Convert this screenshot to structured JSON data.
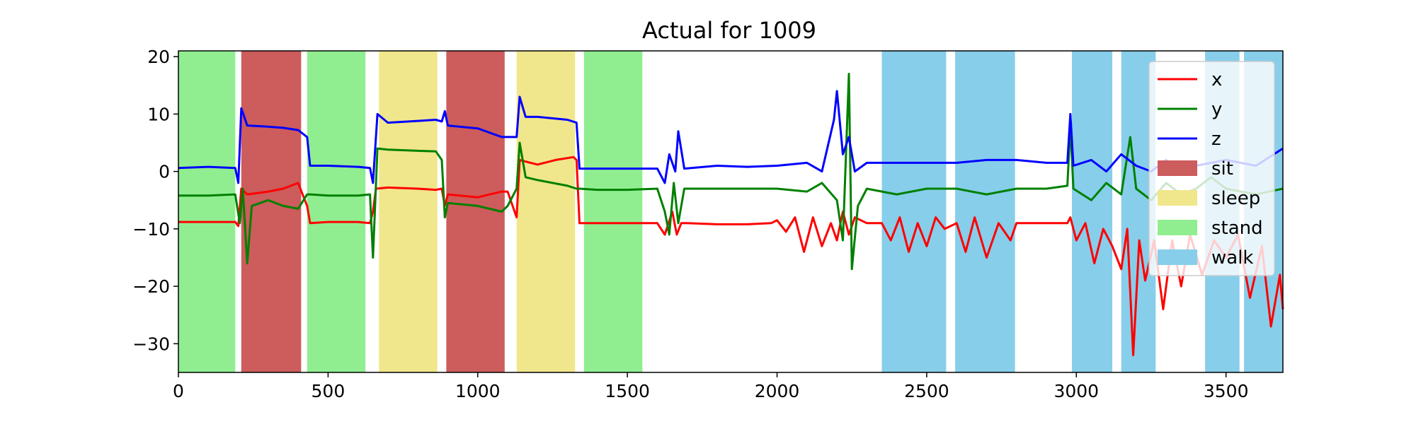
{
  "chart_data": {
    "type": "line",
    "title": "Actual for 1009",
    "xlabel": "",
    "ylabel": "",
    "xlim": [
      0,
      3690
    ],
    "ylim": [
      -35,
      21
    ],
    "x_ticks": [
      0,
      500,
      1000,
      1500,
      2000,
      2500,
      3000,
      3500
    ],
    "y_ticks": [
      20,
      10,
      0,
      -10,
      -20,
      -30
    ],
    "x_tick_labels": [
      "0",
      "500",
      "1000",
      "1500",
      "2000",
      "2500",
      "3000",
      "3500"
    ],
    "y_tick_labels": [
      "20",
      "10",
      "0",
      "−10",
      "−20",
      "−30"
    ],
    "grid": false,
    "legend_position": "upper-right",
    "series": [
      {
        "name": "x",
        "color": "#ff0000",
        "points": [
          [
            0,
            -8.8
          ],
          [
            100,
            -8.8
          ],
          [
            190,
            -8.8
          ],
          [
            200,
            -9.5
          ],
          [
            210,
            -3
          ],
          [
            230,
            -4
          ],
          [
            300,
            -3.5
          ],
          [
            350,
            -3
          ],
          [
            400,
            -2
          ],
          [
            430,
            -6
          ],
          [
            440,
            -9
          ],
          [
            500,
            -8.8
          ],
          [
            600,
            -8.8
          ],
          [
            640,
            -9
          ],
          [
            650,
            -7
          ],
          [
            660,
            -3
          ],
          [
            700,
            -2.8
          ],
          [
            800,
            -3
          ],
          [
            860,
            -3.2
          ],
          [
            880,
            -3
          ],
          [
            890,
            -6
          ],
          [
            900,
            -4
          ],
          [
            1000,
            -4.5
          ],
          [
            1080,
            -3.5
          ],
          [
            1100,
            -3.5
          ],
          [
            1130,
            -8
          ],
          [
            1140,
            2
          ],
          [
            1200,
            1.2
          ],
          [
            1260,
            2
          ],
          [
            1320,
            2.5
          ],
          [
            1330,
            2
          ],
          [
            1340,
            -9
          ],
          [
            1400,
            -9
          ],
          [
            1500,
            -9
          ],
          [
            1550,
            -9
          ],
          [
            1600,
            -9
          ],
          [
            1625,
            -11
          ],
          [
            1650,
            -7
          ],
          [
            1665,
            -11
          ],
          [
            1680,
            -9
          ],
          [
            1700,
            -9
          ],
          [
            1800,
            -9.2
          ],
          [
            1900,
            -9.2
          ],
          [
            1980,
            -9
          ],
          [
            2000,
            -8.5
          ],
          [
            2030,
            -10.5
          ],
          [
            2060,
            -8
          ],
          [
            2090,
            -14
          ],
          [
            2120,
            -8
          ],
          [
            2150,
            -13
          ],
          [
            2180,
            -9
          ],
          [
            2200,
            -12
          ],
          [
            2220,
            -7
          ],
          [
            2240,
            -11
          ],
          [
            2260,
            -8
          ],
          [
            2300,
            -9
          ],
          [
            2350,
            -9
          ],
          [
            2380,
            -12
          ],
          [
            2410,
            -8
          ],
          [
            2440,
            -14
          ],
          [
            2470,
            -9
          ],
          [
            2500,
            -13
          ],
          [
            2530,
            -8
          ],
          [
            2560,
            -10
          ],
          [
            2600,
            -9
          ],
          [
            2630,
            -14
          ],
          [
            2660,
            -8
          ],
          [
            2700,
            -15
          ],
          [
            2740,
            -9
          ],
          [
            2780,
            -12
          ],
          [
            2800,
            -9
          ],
          [
            2900,
            -9
          ],
          [
            2970,
            -9
          ],
          [
            2980,
            -8
          ],
          [
            3000,
            -12
          ],
          [
            3030,
            -9
          ],
          [
            3060,
            -16
          ],
          [
            3090,
            -10
          ],
          [
            3120,
            -13
          ],
          [
            3150,
            -17
          ],
          [
            3170,
            -10
          ],
          [
            3190,
            -32
          ],
          [
            3210,
            -12
          ],
          [
            3230,
            -19
          ],
          [
            3260,
            -12
          ],
          [
            3290,
            -24
          ],
          [
            3320,
            -12
          ],
          [
            3350,
            -20
          ],
          [
            3380,
            -11
          ],
          [
            3420,
            -18
          ],
          [
            3460,
            -12
          ],
          [
            3500,
            -15
          ],
          [
            3540,
            -11
          ],
          [
            3580,
            -22
          ],
          [
            3620,
            -13
          ],
          [
            3650,
            -27
          ],
          [
            3680,
            -18
          ],
          [
            3690,
            -24
          ]
        ]
      },
      {
        "name": "y",
        "color": "#008000",
        "points": [
          [
            0,
            -4.2
          ],
          [
            100,
            -4.2
          ],
          [
            190,
            -4
          ],
          [
            205,
            -9
          ],
          [
            215,
            -3
          ],
          [
            230,
            -16
          ],
          [
            245,
            -6
          ],
          [
            300,
            -5
          ],
          [
            350,
            -6
          ],
          [
            400,
            -6.5
          ],
          [
            430,
            -4
          ],
          [
            440,
            -4
          ],
          [
            500,
            -4.2
          ],
          [
            600,
            -4.2
          ],
          [
            640,
            -4
          ],
          [
            650,
            -15
          ],
          [
            665,
            4
          ],
          [
            700,
            3.8
          ],
          [
            800,
            3.6
          ],
          [
            860,
            3.5
          ],
          [
            880,
            2
          ],
          [
            890,
            -8
          ],
          [
            900,
            -5.5
          ],
          [
            1000,
            -6
          ],
          [
            1080,
            -7
          ],
          [
            1100,
            -6
          ],
          [
            1130,
            -3
          ],
          [
            1140,
            5
          ],
          [
            1160,
            -1
          ],
          [
            1200,
            -1.5
          ],
          [
            1300,
            -2.5
          ],
          [
            1330,
            -3
          ],
          [
            1340,
            -3
          ],
          [
            1400,
            -3.2
          ],
          [
            1500,
            -3.2
          ],
          [
            1600,
            -3
          ],
          [
            1625,
            -7
          ],
          [
            1640,
            -11
          ],
          [
            1655,
            -2
          ],
          [
            1670,
            -9
          ],
          [
            1690,
            -3
          ],
          [
            1800,
            -3
          ],
          [
            1900,
            -3
          ],
          [
            2000,
            -3
          ],
          [
            2100,
            -3.5
          ],
          [
            2150,
            -2
          ],
          [
            2200,
            -5
          ],
          [
            2220,
            -12
          ],
          [
            2240,
            17
          ],
          [
            2250,
            -17
          ],
          [
            2270,
            -6
          ],
          [
            2300,
            -3
          ],
          [
            2400,
            -4
          ],
          [
            2500,
            -3
          ],
          [
            2600,
            -3
          ],
          [
            2700,
            -4
          ],
          [
            2800,
            -3
          ],
          [
            2900,
            -3
          ],
          [
            2970,
            -2.5
          ],
          [
            2980,
            8
          ],
          [
            2990,
            -3
          ],
          [
            3050,
            -5
          ],
          [
            3100,
            -2
          ],
          [
            3150,
            -4
          ],
          [
            3180,
            6
          ],
          [
            3200,
            -3
          ],
          [
            3250,
            -5
          ],
          [
            3300,
            -2
          ],
          [
            3350,
            -4
          ],
          [
            3400,
            -3
          ],
          [
            3450,
            -1
          ],
          [
            3500,
            -3
          ],
          [
            3600,
            -4
          ],
          [
            3690,
            -3
          ]
        ]
      },
      {
        "name": "z",
        "color": "#0000ff",
        "points": [
          [
            0,
            0.6
          ],
          [
            100,
            0.8
          ],
          [
            190,
            0.6
          ],
          [
            200,
            -2
          ],
          [
            210,
            11
          ],
          [
            230,
            8
          ],
          [
            300,
            7.8
          ],
          [
            350,
            7.6
          ],
          [
            400,
            7.2
          ],
          [
            430,
            6
          ],
          [
            440,
            1
          ],
          [
            500,
            1
          ],
          [
            600,
            0.8
          ],
          [
            640,
            0.6
          ],
          [
            650,
            -2
          ],
          [
            665,
            10
          ],
          [
            700,
            8.5
          ],
          [
            800,
            8.8
          ],
          [
            860,
            9
          ],
          [
            880,
            8.7
          ],
          [
            890,
            10.5
          ],
          [
            900,
            8
          ],
          [
            1000,
            7.5
          ],
          [
            1080,
            6
          ],
          [
            1100,
            6
          ],
          [
            1130,
            6
          ],
          [
            1140,
            13
          ],
          [
            1160,
            9.5
          ],
          [
            1200,
            9.5
          ],
          [
            1300,
            9
          ],
          [
            1330,
            8.5
          ],
          [
            1340,
            0.5
          ],
          [
            1400,
            0.5
          ],
          [
            1500,
            0.5
          ],
          [
            1600,
            0.5
          ],
          [
            1625,
            -2
          ],
          [
            1640,
            3
          ],
          [
            1660,
            0
          ],
          [
            1670,
            7
          ],
          [
            1690,
            0.5
          ],
          [
            1800,
            1
          ],
          [
            1900,
            0.8
          ],
          [
            2000,
            1
          ],
          [
            2100,
            1.5
          ],
          [
            2150,
            0
          ],
          [
            2190,
            9
          ],
          [
            2200,
            14
          ],
          [
            2220,
            3
          ],
          [
            2240,
            6
          ],
          [
            2260,
            0
          ],
          [
            2300,
            1.5
          ],
          [
            2400,
            1.5
          ],
          [
            2500,
            1.5
          ],
          [
            2600,
            1.5
          ],
          [
            2700,
            2
          ],
          [
            2800,
            2
          ],
          [
            2900,
            1.5
          ],
          [
            2970,
            1.5
          ],
          [
            2980,
            10
          ],
          [
            2990,
            1
          ],
          [
            3050,
            2
          ],
          [
            3100,
            0
          ],
          [
            3150,
            3
          ],
          [
            3200,
            1
          ],
          [
            3250,
            0
          ],
          [
            3300,
            2
          ],
          [
            3350,
            0
          ],
          [
            3400,
            1
          ],
          [
            3500,
            2
          ],
          [
            3600,
            1
          ],
          [
            3690,
            4
          ]
        ]
      }
    ],
    "activities": [
      {
        "name": "sit",
        "color": "#cd5c5c"
      },
      {
        "name": "sleep",
        "color": "#f0e68c"
      },
      {
        "name": "stand",
        "color": "#90ee90"
      },
      {
        "name": "walk",
        "color": "#87ceeb"
      }
    ],
    "spans": [
      {
        "activity": "stand",
        "start": 0,
        "end": 190
      },
      {
        "activity": "sit",
        "start": 210,
        "end": 410
      },
      {
        "activity": "stand",
        "start": 430,
        "end": 625
      },
      {
        "activity": "sleep",
        "start": 670,
        "end": 865
      },
      {
        "activity": "sit",
        "start": 895,
        "end": 1090
      },
      {
        "activity": "sleep",
        "start": 1130,
        "end": 1325
      },
      {
        "activity": "stand",
        "start": 1355,
        "end": 1550
      },
      {
        "activity": "walk",
        "start": 2350,
        "end": 2565
      },
      {
        "activity": "walk",
        "start": 2595,
        "end": 2795
      },
      {
        "activity": "walk",
        "start": 2985,
        "end": 3120
      },
      {
        "activity": "walk",
        "start": 3150,
        "end": 3265
      },
      {
        "activity": "walk",
        "start": 3430,
        "end": 3545
      },
      {
        "activity": "walk",
        "start": 3560,
        "end": 3690
      }
    ]
  }
}
